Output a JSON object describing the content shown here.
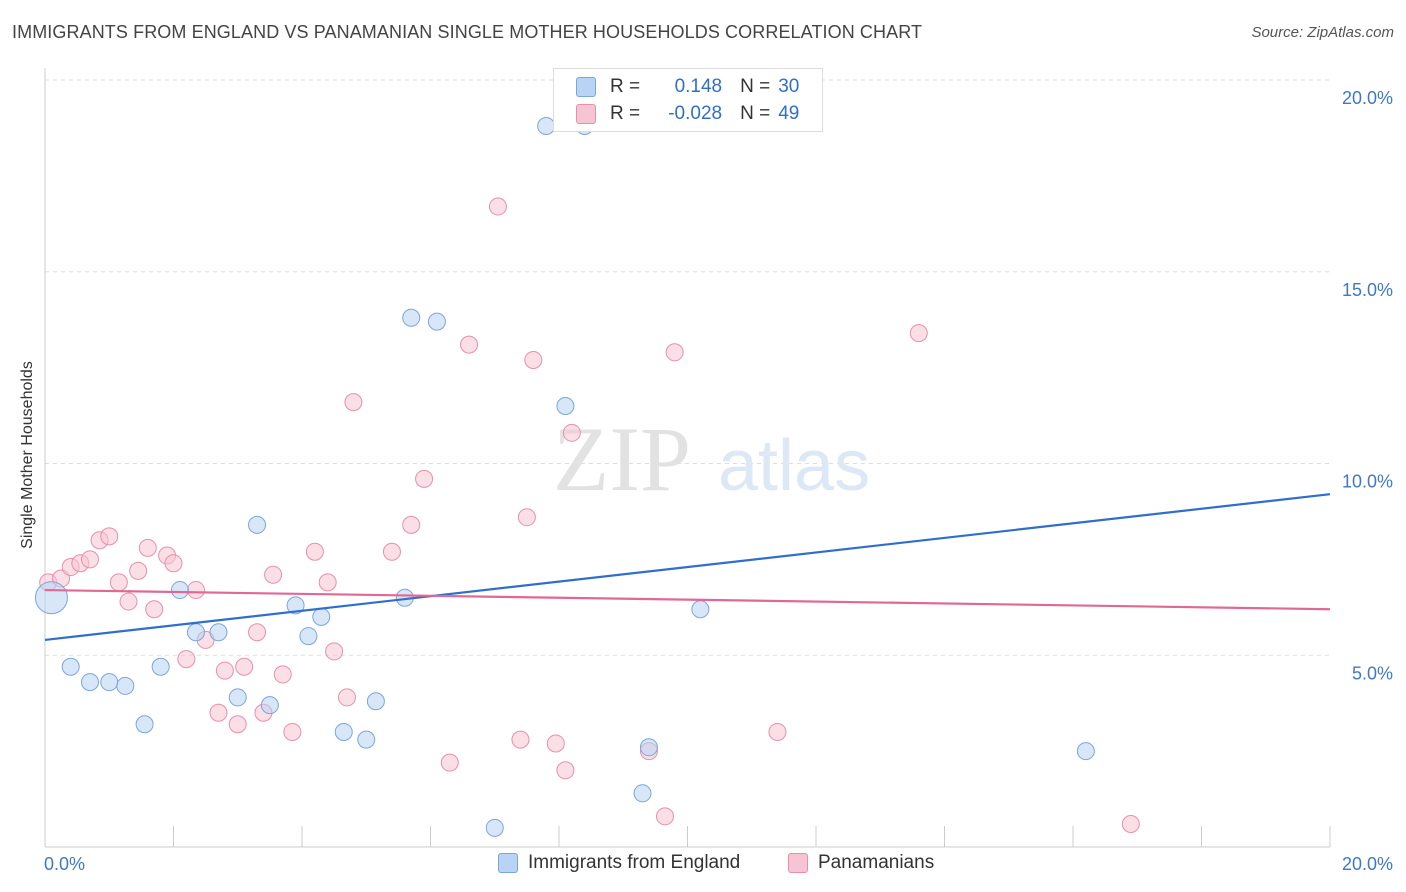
{
  "title": "IMMIGRANTS FROM ENGLAND VS PANAMANIAN SINGLE MOTHER HOUSEHOLDS CORRELATION CHART",
  "source": "Source: ZipAtlas.com",
  "watermark": {
    "zip": "ZIP",
    "atlas": "atlas"
  },
  "colors": {
    "blue_fill": "#b8d3f3",
    "blue_stroke": "#7ba6dc",
    "blue_line": "#2f6fc9",
    "pink_fill": "#f6c4d3",
    "pink_stroke": "#e98fac",
    "pink_line": "#e06895",
    "grid": "#dddddd",
    "tick_label": "#3f78c9"
  },
  "legend_box": {
    "rows": [
      {
        "r_label": "R =",
        "r_value": "0.148",
        "n_label": "N =",
        "n_value": "30"
      },
      {
        "r_label": "R =",
        "r_value": "-0.028",
        "n_label": "N =",
        "n_value": "49"
      }
    ]
  },
  "bottom_legend": [
    "Immigrants from England",
    "Panamanians"
  ],
  "chart_data": {
    "type": "scatter",
    "title": "IMMIGRANTS FROM ENGLAND VS PANAMANIAN SINGLE MOTHER HOUSEHOLDS CORRELATION CHART",
    "xlabel": "",
    "ylabel": "Single Mother Households",
    "xlim": [
      0,
      20
    ],
    "ylim": [
      0,
      20
    ],
    "x_tick_labels": [
      "0.0%",
      "20.0%"
    ],
    "y_ticks": [
      5,
      10,
      15,
      20
    ],
    "y_tick_labels": [
      "5.0%",
      "10.0%",
      "15.0%",
      "20.0%"
    ],
    "grid": true,
    "legend_position": "bottom",
    "series": [
      {
        "name": "Immigrants from England",
        "r": 0.148,
        "n": 30,
        "trend": {
          "x": [
            0,
            20
          ],
          "y": [
            5.4,
            9.2
          ]
        },
        "points": [
          {
            "x": 0.1,
            "y": 6.5,
            "big": true
          },
          {
            "x": 0.4,
            "y": 4.7
          },
          {
            "x": 0.7,
            "y": 4.3
          },
          {
            "x": 1.0,
            "y": 4.3
          },
          {
            "x": 1.25,
            "y": 4.2
          },
          {
            "x": 1.55,
            "y": 3.2
          },
          {
            "x": 1.8,
            "y": 4.7
          },
          {
            "x": 2.1,
            "y": 6.7
          },
          {
            "x": 2.35,
            "y": 5.6
          },
          {
            "x": 2.7,
            "y": 5.6
          },
          {
            "x": 3.0,
            "y": 3.9
          },
          {
            "x": 3.3,
            "y": 8.4
          },
          {
            "x": 3.5,
            "y": 3.7
          },
          {
            "x": 3.9,
            "y": 6.3
          },
          {
            "x": 4.1,
            "y": 5.5
          },
          {
            "x": 4.3,
            "y": 6.0
          },
          {
            "x": 4.65,
            "y": 3.0
          },
          {
            "x": 5.0,
            "y": 2.8
          },
          {
            "x": 5.15,
            "y": 3.8
          },
          {
            "x": 5.6,
            "y": 6.5
          },
          {
            "x": 5.7,
            "y": 13.8
          },
          {
            "x": 6.1,
            "y": 13.7
          },
          {
            "x": 7.0,
            "y": 0.5
          },
          {
            "x": 7.8,
            "y": 18.8
          },
          {
            "x": 8.1,
            "y": 11.5
          },
          {
            "x": 8.4,
            "y": 18.8
          },
          {
            "x": 9.3,
            "y": 1.4
          },
          {
            "x": 9.4,
            "y": 2.6
          },
          {
            "x": 10.2,
            "y": 6.2
          },
          {
            "x": 16.2,
            "y": 2.5
          }
        ]
      },
      {
        "name": "Panamanians",
        "r": -0.028,
        "n": 49,
        "trend": {
          "x": [
            0,
            20
          ],
          "y": [
            6.7,
            6.2
          ]
        },
        "points": [
          {
            "x": 0.05,
            "y": 6.9
          },
          {
            "x": 0.25,
            "y": 7.0
          },
          {
            "x": 0.4,
            "y": 7.3
          },
          {
            "x": 0.55,
            "y": 7.4
          },
          {
            "x": 0.7,
            "y": 7.5
          },
          {
            "x": 0.85,
            "y": 8.0
          },
          {
            "x": 1.0,
            "y": 8.1
          },
          {
            "x": 1.15,
            "y": 6.9
          },
          {
            "x": 1.3,
            "y": 6.4
          },
          {
            "x": 1.45,
            "y": 7.2
          },
          {
            "x": 1.6,
            "y": 7.8
          },
          {
            "x": 1.7,
            "y": 6.2
          },
          {
            "x": 1.9,
            "y": 7.6
          },
          {
            "x": 2.0,
            "y": 7.4
          },
          {
            "x": 2.2,
            "y": 4.9
          },
          {
            "x": 2.35,
            "y": 6.7
          },
          {
            "x": 2.5,
            "y": 5.4
          },
          {
            "x": 2.7,
            "y": 3.5
          },
          {
            "x": 2.8,
            "y": 4.6
          },
          {
            "x": 3.0,
            "y": 3.2
          },
          {
            "x": 3.1,
            "y": 4.7
          },
          {
            "x": 3.3,
            "y": 5.6
          },
          {
            "x": 3.4,
            "y": 3.5
          },
          {
            "x": 3.55,
            "y": 7.1
          },
          {
            "x": 3.7,
            "y": 4.5
          },
          {
            "x": 3.85,
            "y": 3.0
          },
          {
            "x": 4.2,
            "y": 7.7
          },
          {
            "x": 4.4,
            "y": 6.9
          },
          {
            "x": 4.5,
            "y": 5.1
          },
          {
            "x": 4.7,
            "y": 3.9
          },
          {
            "x": 4.8,
            "y": 11.6
          },
          {
            "x": 5.4,
            "y": 7.7
          },
          {
            "x": 5.7,
            "y": 8.4
          },
          {
            "x": 5.9,
            "y": 9.6
          },
          {
            "x": 6.3,
            "y": 2.2
          },
          {
            "x": 6.6,
            "y": 13.1
          },
          {
            "x": 7.05,
            "y": 16.7
          },
          {
            "x": 7.4,
            "y": 2.8
          },
          {
            "x": 7.5,
            "y": 8.6
          },
          {
            "x": 7.6,
            "y": 12.7
          },
          {
            "x": 7.95,
            "y": 2.7
          },
          {
            "x": 8.1,
            "y": 2.0
          },
          {
            "x": 8.2,
            "y": 10.8
          },
          {
            "x": 9.4,
            "y": 2.5
          },
          {
            "x": 9.65,
            "y": 0.8
          },
          {
            "x": 9.8,
            "y": 12.9
          },
          {
            "x": 11.4,
            "y": 3.0
          },
          {
            "x": 13.6,
            "y": 13.4
          },
          {
            "x": 16.9,
            "y": 0.6
          }
        ]
      }
    ]
  }
}
